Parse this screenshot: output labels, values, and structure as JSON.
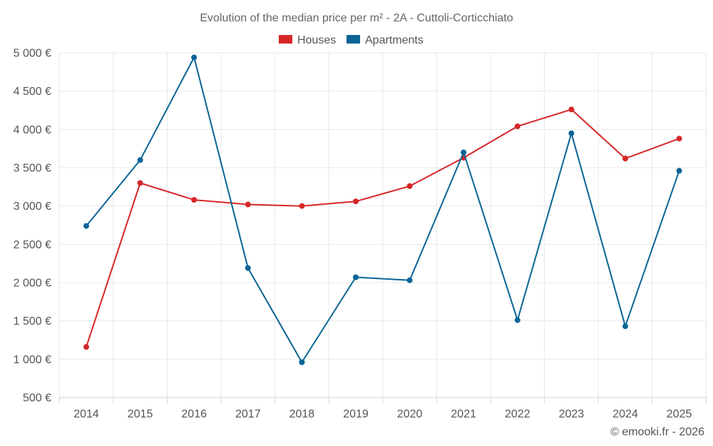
{
  "chart_data": {
    "type": "line",
    "title": "Evolution of the median price per m² - 2A - Cuttoli-Corticchiato",
    "xlabel": "",
    "ylabel": "",
    "categories": [
      "2014",
      "2015",
      "2016",
      "2017",
      "2018",
      "2019",
      "2020",
      "2021",
      "2022",
      "2023",
      "2024",
      "2025"
    ],
    "ylim": [
      500,
      5000
    ],
    "yticks": [
      500,
      1000,
      1500,
      2000,
      2500,
      3000,
      3500,
      4000,
      4500,
      5000
    ],
    "ytick_labels": [
      "500 €",
      "1 000 €",
      "1 500 €",
      "2 000 €",
      "2 500 €",
      "3 000 €",
      "3 500 €",
      "4 000 €",
      "4 500 €",
      "5 000 €"
    ],
    "grid": true,
    "legend_position": "top-center",
    "series": [
      {
        "name": "Houses",
        "color": "#d62728",
        "values": [
          1160,
          3300,
          3080,
          3020,
          3000,
          3060,
          3260,
          3630,
          4040,
          4260,
          3620,
          3880
        ]
      },
      {
        "name": "Apartments",
        "color": "#0a6496",
        "values": [
          2740,
          3600,
          4940,
          2190,
          960,
          2070,
          2030,
          3700,
          1510,
          3950,
          1430,
          3460
        ]
      }
    ]
  },
  "credit": "© emooki.fr - 2026"
}
